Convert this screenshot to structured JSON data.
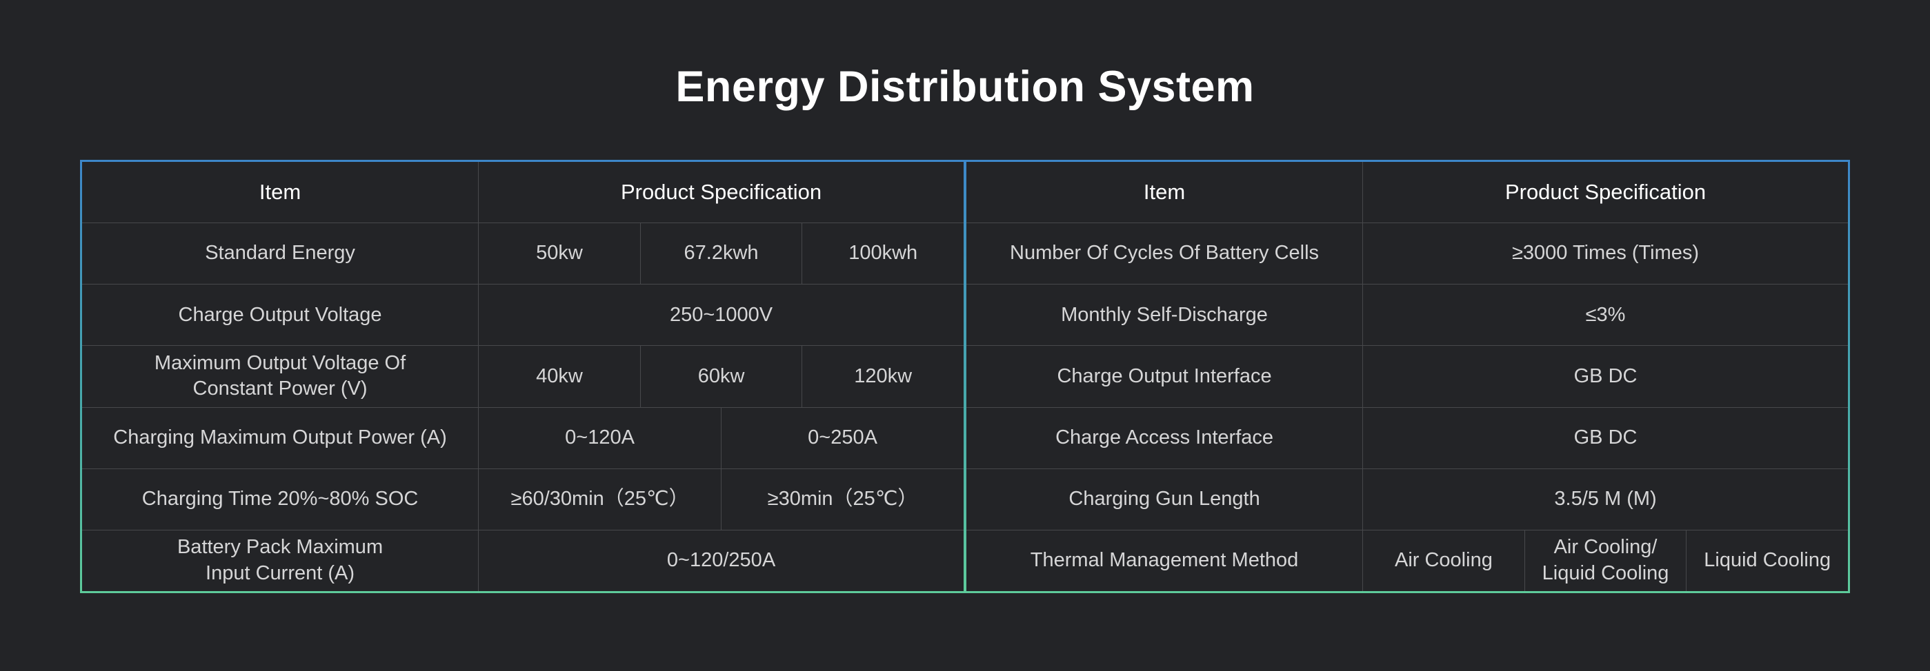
{
  "page": {
    "title": "Energy Distribution System"
  },
  "theme": {
    "page_bg": "#232427",
    "title_color": "#ffffff",
    "header_text": "#ffffff",
    "cell_text": "#d6d6d7",
    "grid_line": "#47484b",
    "border_gradient_top": "#3d87c9",
    "border_gradient_mid": "#47a9ab",
    "border_gradient_bottom": "#5ecb9b"
  },
  "left_table": {
    "header": {
      "item": "Item",
      "spec": "Product Specification"
    },
    "rows": [
      {
        "item": "Standard Energy",
        "values": [
          "50kw",
          "67.2kwh",
          "100kwh"
        ]
      },
      {
        "item": "Charge Output Voltage",
        "values": [
          "250~1000V"
        ]
      },
      {
        "item": "Maximum Output Voltage Of Constant Power (V)",
        "values": [
          "40kw",
          "60kw",
          "120kw"
        ]
      },
      {
        "item": "Charging Maximum Output Power (A)",
        "values": [
          "0~120A",
          "0~250A"
        ]
      },
      {
        "item": "Charging Time 20%~80% SOC",
        "values": [
          "≥60/30min（25℃）",
          "≥30min（25℃）"
        ]
      },
      {
        "item": "Battery Pack Maximum Input Current (A)",
        "values": [
          "0~120/250A"
        ]
      }
    ]
  },
  "right_table": {
    "header": {
      "item": "Item",
      "spec": "Product Specification"
    },
    "rows": [
      {
        "item": "Number Of Cycles Of Battery Cells",
        "values": [
          "≥3000 Times (Times)"
        ]
      },
      {
        "item": "Monthly Self-Discharge",
        "values": [
          "≤3%"
        ]
      },
      {
        "item": "Charge Output Interface",
        "values": [
          "GB DC"
        ]
      },
      {
        "item": "Charge Access Interface",
        "values": [
          "GB DC"
        ]
      },
      {
        "item": "Charging Gun Length",
        "values": [
          "3.5/5 M (M)"
        ]
      },
      {
        "item": "Thermal Management Method",
        "values": [
          "Air Cooling",
          "Air Cooling/ Liquid Cooling",
          "Liquid Cooling"
        ]
      }
    ]
  }
}
